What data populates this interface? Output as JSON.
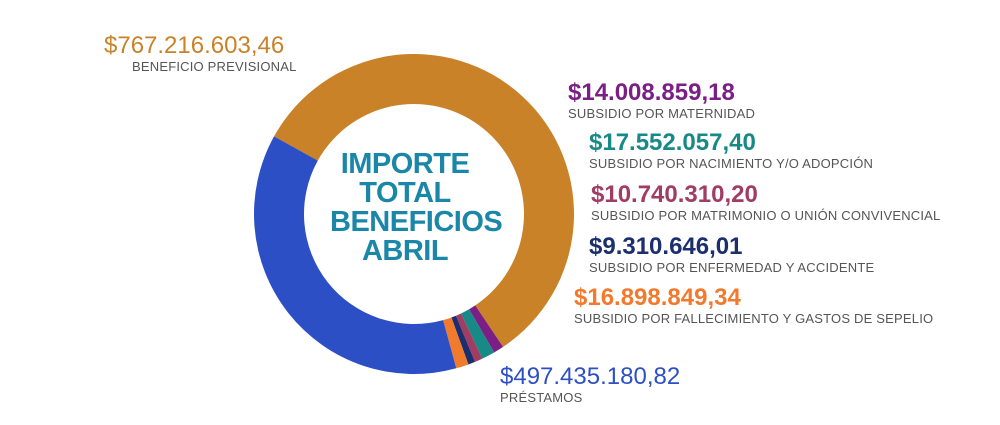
{
  "chart_data": {
    "type": "pie",
    "subtype": "donut",
    "center_title": [
      "IMPORTE",
      "TOTAL",
      "BENEFICIOS",
      "ABRIL"
    ],
    "slices": [
      {
        "label": "BENEFICIO PREVISIONAL",
        "value_text": "$767.216.603,46",
        "value": 767216603.46,
        "color": "#c98227"
      },
      {
        "label": "SUBSIDIO POR MATERNIDAD",
        "value_text": "$14.008.859,18",
        "value": 14008859.18,
        "color": "#7b1f86"
      },
      {
        "label": "SUBSIDIO POR NACIMIENTO Y/O ADOPCIÓN",
        "value_text": "$17.552.057,40",
        "value": 17552057.4,
        "color": "#178a86"
      },
      {
        "label": "SUBSIDIO POR MATRIMONIO O UNIÓN CONVIVENCIAL",
        "value_text": "$10.740.310,20",
        "value": 10740310.2,
        "color": "#a13c63"
      },
      {
        "label": "SUBSIDIO POR ENFERMEDAD Y ACCIDENTE",
        "value_text": "$9.310.646,01",
        "value": 9310646.01,
        "color": "#1b2e6e"
      },
      {
        "label": "SUBSIDIO POR FALLECIMIENTO Y GASTOS DE SEPELIO",
        "value_text": "$16.898.849,34",
        "value": 16898849.34,
        "color": "#f27a2c"
      },
      {
        "label": "PRÉSTAMOS",
        "value_text": "$497.435.180,82",
        "value": 497435180.82,
        "color": "#2c4fc6"
      }
    ]
  }
}
